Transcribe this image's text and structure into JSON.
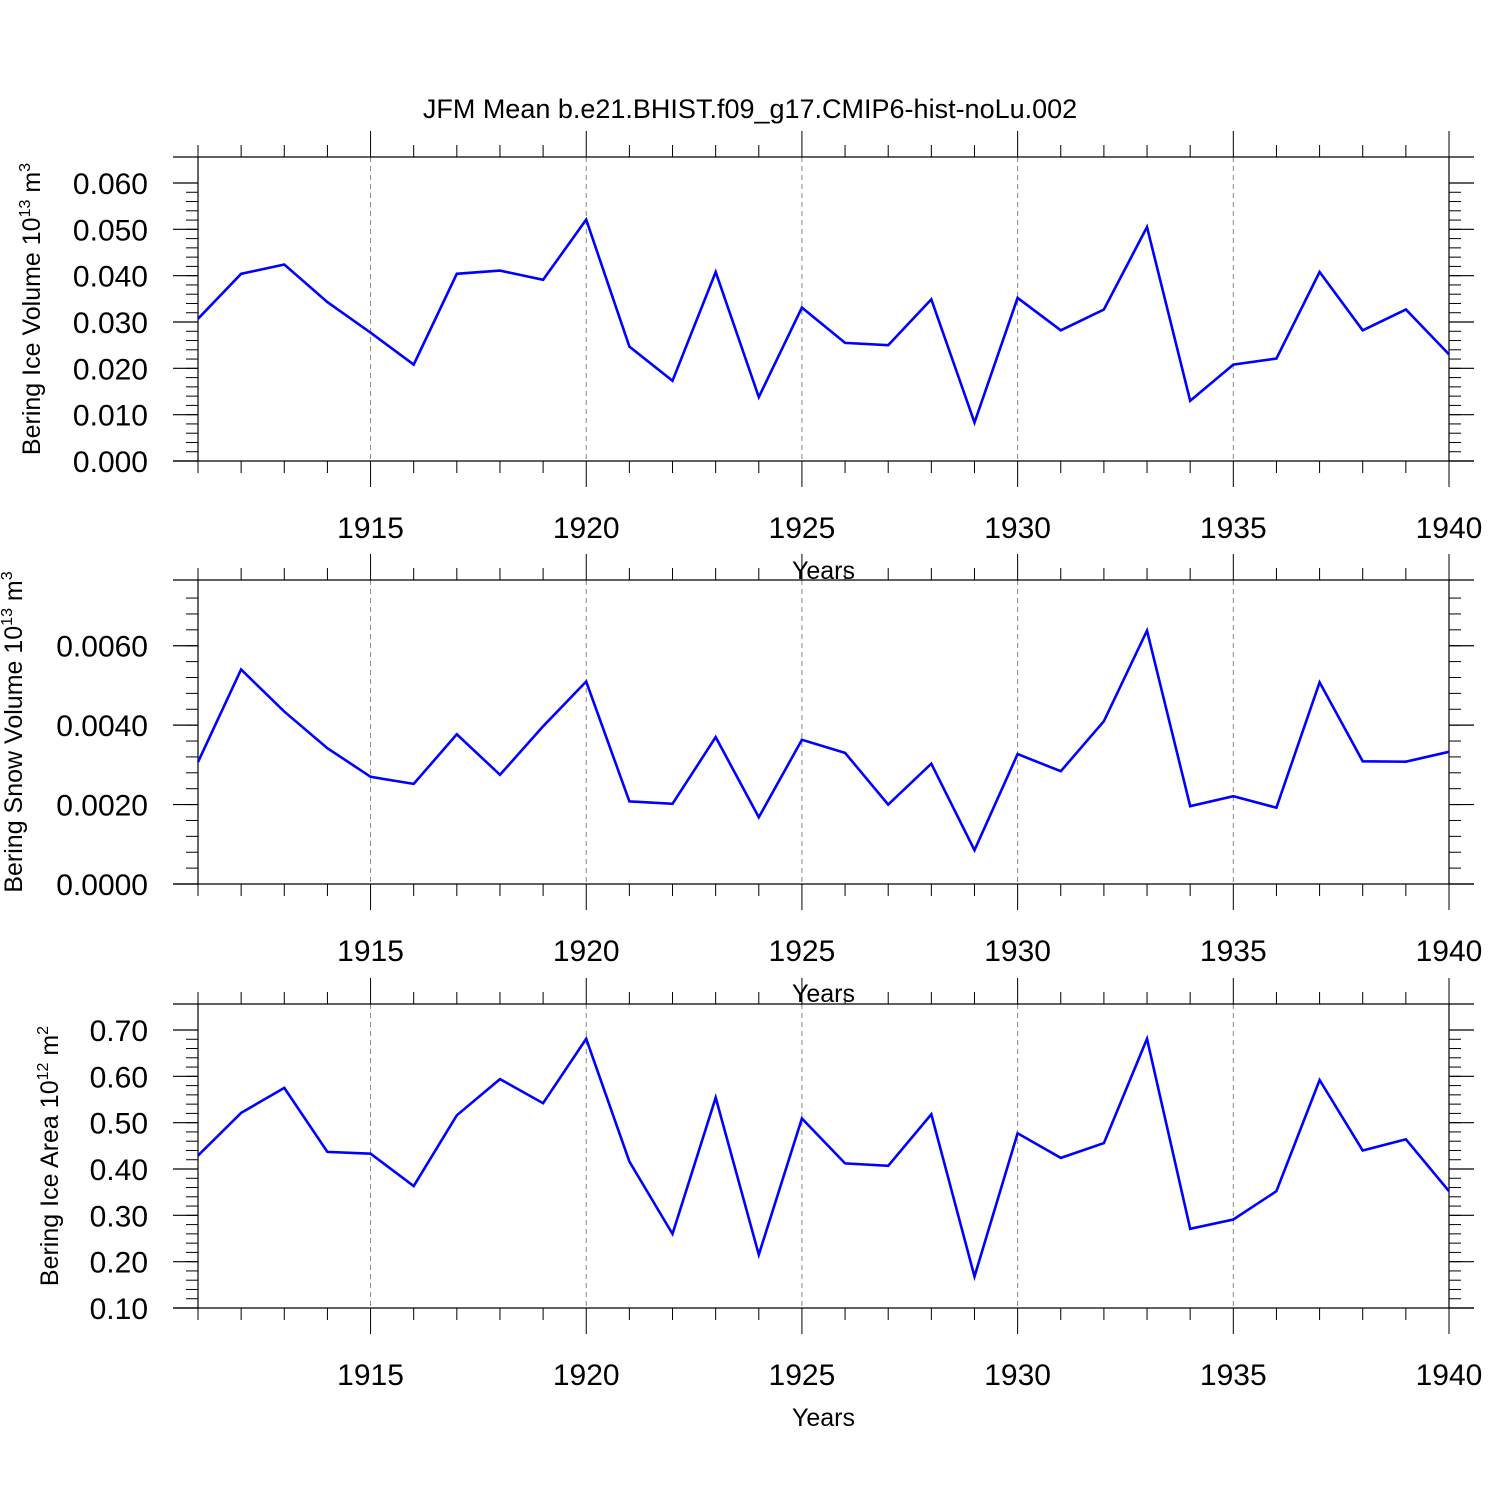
{
  "title": "JFM Mean b.e21.BHIST.f09_g17.CMIP6-hist-noLu.002",
  "colors": {
    "line": "#0000ff",
    "frame": "#000000",
    "grid": "#888888"
  },
  "chart_data": [
    {
      "type": "line",
      "ylabel": "Bering Ice Volume 10",
      "ylabel_sup": "13",
      "ylabel_unit": " m",
      "ylabel_unit_sup": "3",
      "xlabel": "Years",
      "xlim": [
        1911,
        1940
      ],
      "ylim": [
        0.0,
        0.06
      ],
      "xticks": [
        "1915",
        "1920",
        "1925",
        "1930",
        "1935",
        "1940"
      ],
      "yticks": [
        "0.000",
        "0.010",
        "0.020",
        "0.030",
        "0.040",
        "0.050",
        "0.060"
      ],
      "grid": "dashed vertical lines at major x ticks",
      "x": [
        1911,
        1912,
        1913,
        1914,
        1915,
        1916,
        1917,
        1918,
        1919,
        1920,
        1921,
        1922,
        1923,
        1924,
        1925,
        1926,
        1927,
        1928,
        1929,
        1930,
        1931,
        1932,
        1933,
        1934,
        1935,
        1936,
        1937,
        1938,
        1939,
        1940
      ],
      "values": [
        0.0307,
        0.0404,
        0.0424,
        0.0343,
        0.0277,
        0.0208,
        0.0404,
        0.0411,
        0.0391,
        0.0521,
        0.0247,
        0.0173,
        0.0408,
        0.0138,
        0.0331,
        0.0255,
        0.025,
        0.0349,
        0.0083,
        0.0352,
        0.0282,
        0.0327,
        0.0505,
        0.013,
        0.0208,
        0.0221,
        0.0408,
        0.0282,
        0.0327,
        0.023
      ]
    },
    {
      "type": "line",
      "ylabel": "Bering Snow Volume 10",
      "ylabel_sup": "13",
      "ylabel_unit": " m",
      "ylabel_unit_sup": "3",
      "xlabel": "Years",
      "xlim": [
        1911,
        1940
      ],
      "ylim": [
        0.0,
        0.007
      ],
      "xticks": [
        "1915",
        "1920",
        "1925",
        "1930",
        "1935",
        "1940"
      ],
      "yticks": [
        "0.0000",
        "0.0020",
        "0.0040",
        "0.0060"
      ],
      "grid": "dashed vertical lines at major x ticks",
      "x": [
        1911,
        1912,
        1913,
        1914,
        1915,
        1916,
        1917,
        1918,
        1919,
        1920,
        1921,
        1922,
        1923,
        1924,
        1925,
        1926,
        1927,
        1928,
        1929,
        1930,
        1931,
        1932,
        1933,
        1934,
        1935,
        1936,
        1937,
        1938,
        1939,
        1940
      ],
      "values": [
        0.00307,
        0.0054,
        0.00434,
        0.00342,
        0.0027,
        0.00252,
        0.00377,
        0.00275,
        0.00397,
        0.0051,
        0.00208,
        0.00202,
        0.0037,
        0.00168,
        0.00363,
        0.0033,
        0.002,
        0.00303,
        0.00085,
        0.00327,
        0.00284,
        0.0041,
        0.00638,
        0.00196,
        0.00221,
        0.00192,
        0.00508,
        0.00309,
        0.00308,
        0.00333
      ]
    },
    {
      "type": "line",
      "ylabel": "Bering Ice Area 10",
      "ylabel_sup": "12",
      "ylabel_unit": " m",
      "ylabel_unit_sup": "2",
      "xlabel": "Years",
      "xlim": [
        1911,
        1940
      ],
      "ylim": [
        0.1,
        0.7
      ],
      "xticks": [
        "1915",
        "1920",
        "1925",
        "1930",
        "1935",
        "1940"
      ],
      "yticks": [
        "0.10",
        "0.20",
        "0.30",
        "0.40",
        "0.50",
        "0.60",
        "0.70"
      ],
      "grid": "dashed vertical lines at major x ticks",
      "x": [
        1911,
        1912,
        1913,
        1914,
        1915,
        1916,
        1917,
        1918,
        1919,
        1920,
        1921,
        1922,
        1923,
        1924,
        1925,
        1926,
        1927,
        1928,
        1929,
        1930,
        1931,
        1932,
        1933,
        1934,
        1935,
        1936,
        1937,
        1938,
        1939,
        1940
      ],
      "values": [
        0.429,
        0.521,
        0.575,
        0.437,
        0.433,
        0.363,
        0.516,
        0.594,
        0.542,
        0.681,
        0.416,
        0.26,
        0.554,
        0.215,
        0.509,
        0.412,
        0.407,
        0.518,
        0.168,
        0.477,
        0.424,
        0.456,
        0.681,
        0.271,
        0.291,
        0.352,
        0.592,
        0.44,
        0.464,
        0.352
      ]
    }
  ]
}
